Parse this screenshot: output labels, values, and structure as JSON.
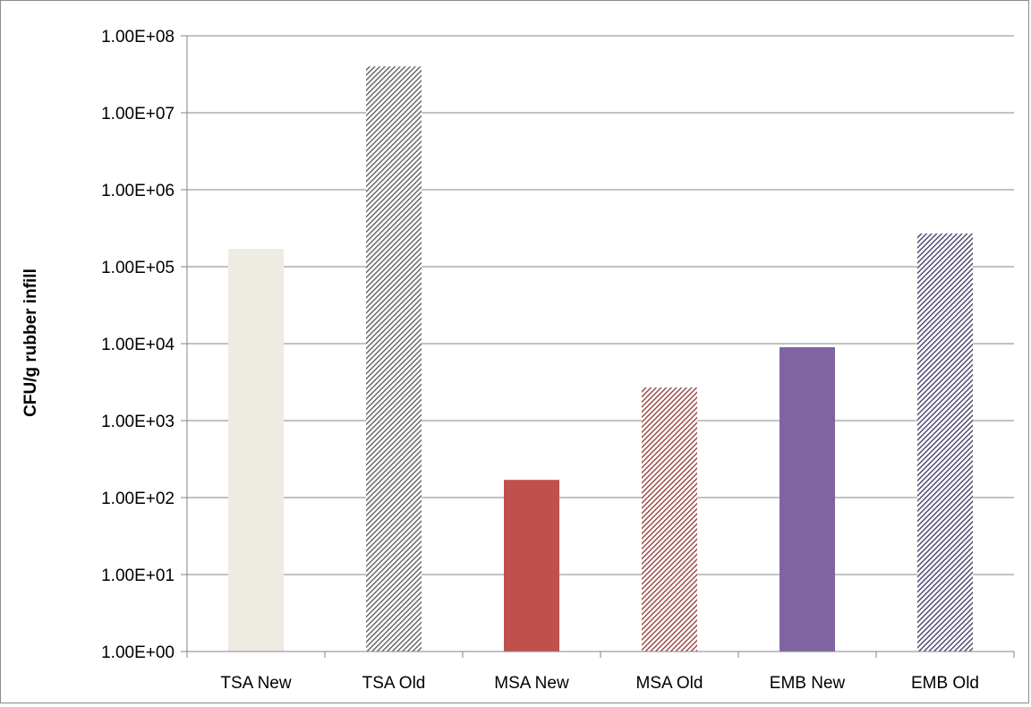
{
  "chart_data": {
    "type": "bar",
    "yscale": "log",
    "title": "",
    "xlabel": "",
    "ylabel": "CFU/g rubber infill",
    "ylim": [
      1,
      100000000
    ],
    "yticks": [
      1,
      10,
      100,
      1000,
      10000,
      100000,
      1000000,
      10000000,
      100000000
    ],
    "ytick_labels": [
      "1.00E+00",
      "1.00E+01",
      "1.00E+02",
      "1.00E+03",
      "1.00E+04",
      "1.00E+05",
      "1.00E+06",
      "1.00E+07",
      "1.00E+08"
    ],
    "grid": "horizontal",
    "categories": [
      "TSA New",
      "TSA Old",
      "MSA New",
      "MSA Old",
      "EMB New",
      "EMB Old"
    ],
    "values": [
      170000,
      40000000,
      170,
      2700,
      9000,
      270000
    ],
    "colors": [
      "#eeebe2",
      "#555555",
      "#c0504d",
      "#8e3533",
      "#8064a2",
      "#3e3162"
    ],
    "patterns": [
      "solid",
      "hatched",
      "solid",
      "hatched",
      "solid",
      "hatched"
    ]
  }
}
